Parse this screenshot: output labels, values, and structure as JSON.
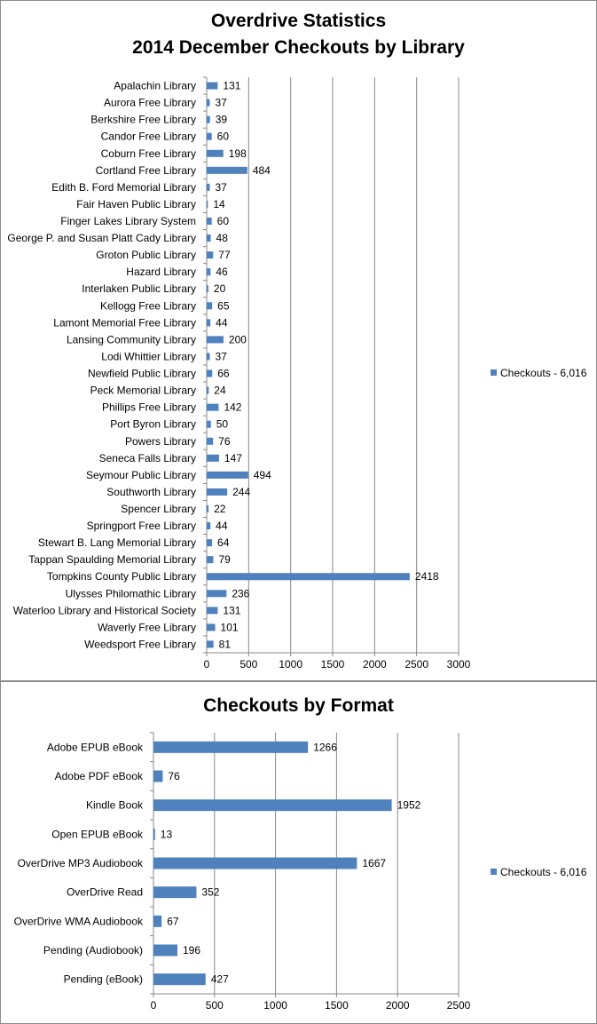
{
  "chart_data": [
    {
      "type": "bar",
      "orientation": "horizontal",
      "title": "Overdrive Statistics",
      "subtitle": "2014 December Checkouts by Library",
      "categories": [
        "Apalachin Library",
        "Aurora Free Library",
        "Berkshire Free Library",
        "Candor Free Library",
        "Coburn Free Library",
        "Cortland Free Library",
        "Edith B. Ford Memorial Library",
        "Fair Haven Public Library",
        "Finger Lakes Library System",
        "George P. and Susan Platt Cady Library",
        "Groton Public Library",
        "Hazard Library",
        "Interlaken Public Library",
        "Kellogg Free Library",
        "Lamont Memorial Free Library",
        "Lansing Community Library",
        "Lodi Whittier Library",
        "Newfield Public Library",
        "Peck Memorial Library",
        "Phillips Free Library",
        "Port Byron Library",
        "Powers Library",
        "Seneca Falls Library",
        "Seymour Public Library",
        "Southworth Library",
        "Spencer Library",
        "Springport Free Library",
        "Stewart B. Lang Memorial Library",
        "Tappan Spaulding Memorial Library",
        "Tompkins County Public Library",
        "Ulysses Philomathic Library",
        "Waterloo Library and Historical Society",
        "Waverly Free Library",
        "Weedsport Free Library"
      ],
      "series": [
        {
          "name": "Checkouts - 6,016",
          "values": [
            131,
            37,
            39,
            60,
            198,
            484,
            37,
            14,
            60,
            48,
            77,
            46,
            20,
            65,
            44,
            200,
            37,
            66,
            24,
            142,
            50,
            76,
            147,
            494,
            244,
            22,
            44,
            64,
            79,
            2418,
            236,
            131,
            101,
            81
          ]
        }
      ],
      "xlim": [
        0,
        3000
      ],
      "xticks": [
        0,
        500,
        1000,
        1500,
        2000,
        2500,
        3000
      ],
      "grid": "vertical",
      "legend": "right",
      "color": "#4f81bd"
    },
    {
      "type": "bar",
      "orientation": "horizontal",
      "title": "Checkouts by Format",
      "categories": [
        "Adobe EPUB eBook",
        "Adobe PDF eBook",
        "Kindle Book",
        "Open EPUB eBook",
        "OverDrive MP3 Audiobook",
        "OverDrive Read",
        "OverDrive WMA Audiobook",
        "Pending (Audiobook)",
        "Pending (eBook)"
      ],
      "series": [
        {
          "name": "Checkouts - 6,016",
          "values": [
            1266,
            76,
            1952,
            13,
            1667,
            352,
            67,
            196,
            427
          ]
        }
      ],
      "xlim": [
        0,
        2500
      ],
      "xticks": [
        0,
        500,
        1000,
        1500,
        2000,
        2500
      ],
      "grid": "vertical",
      "legend": "right",
      "color": "#4f81bd"
    }
  ]
}
